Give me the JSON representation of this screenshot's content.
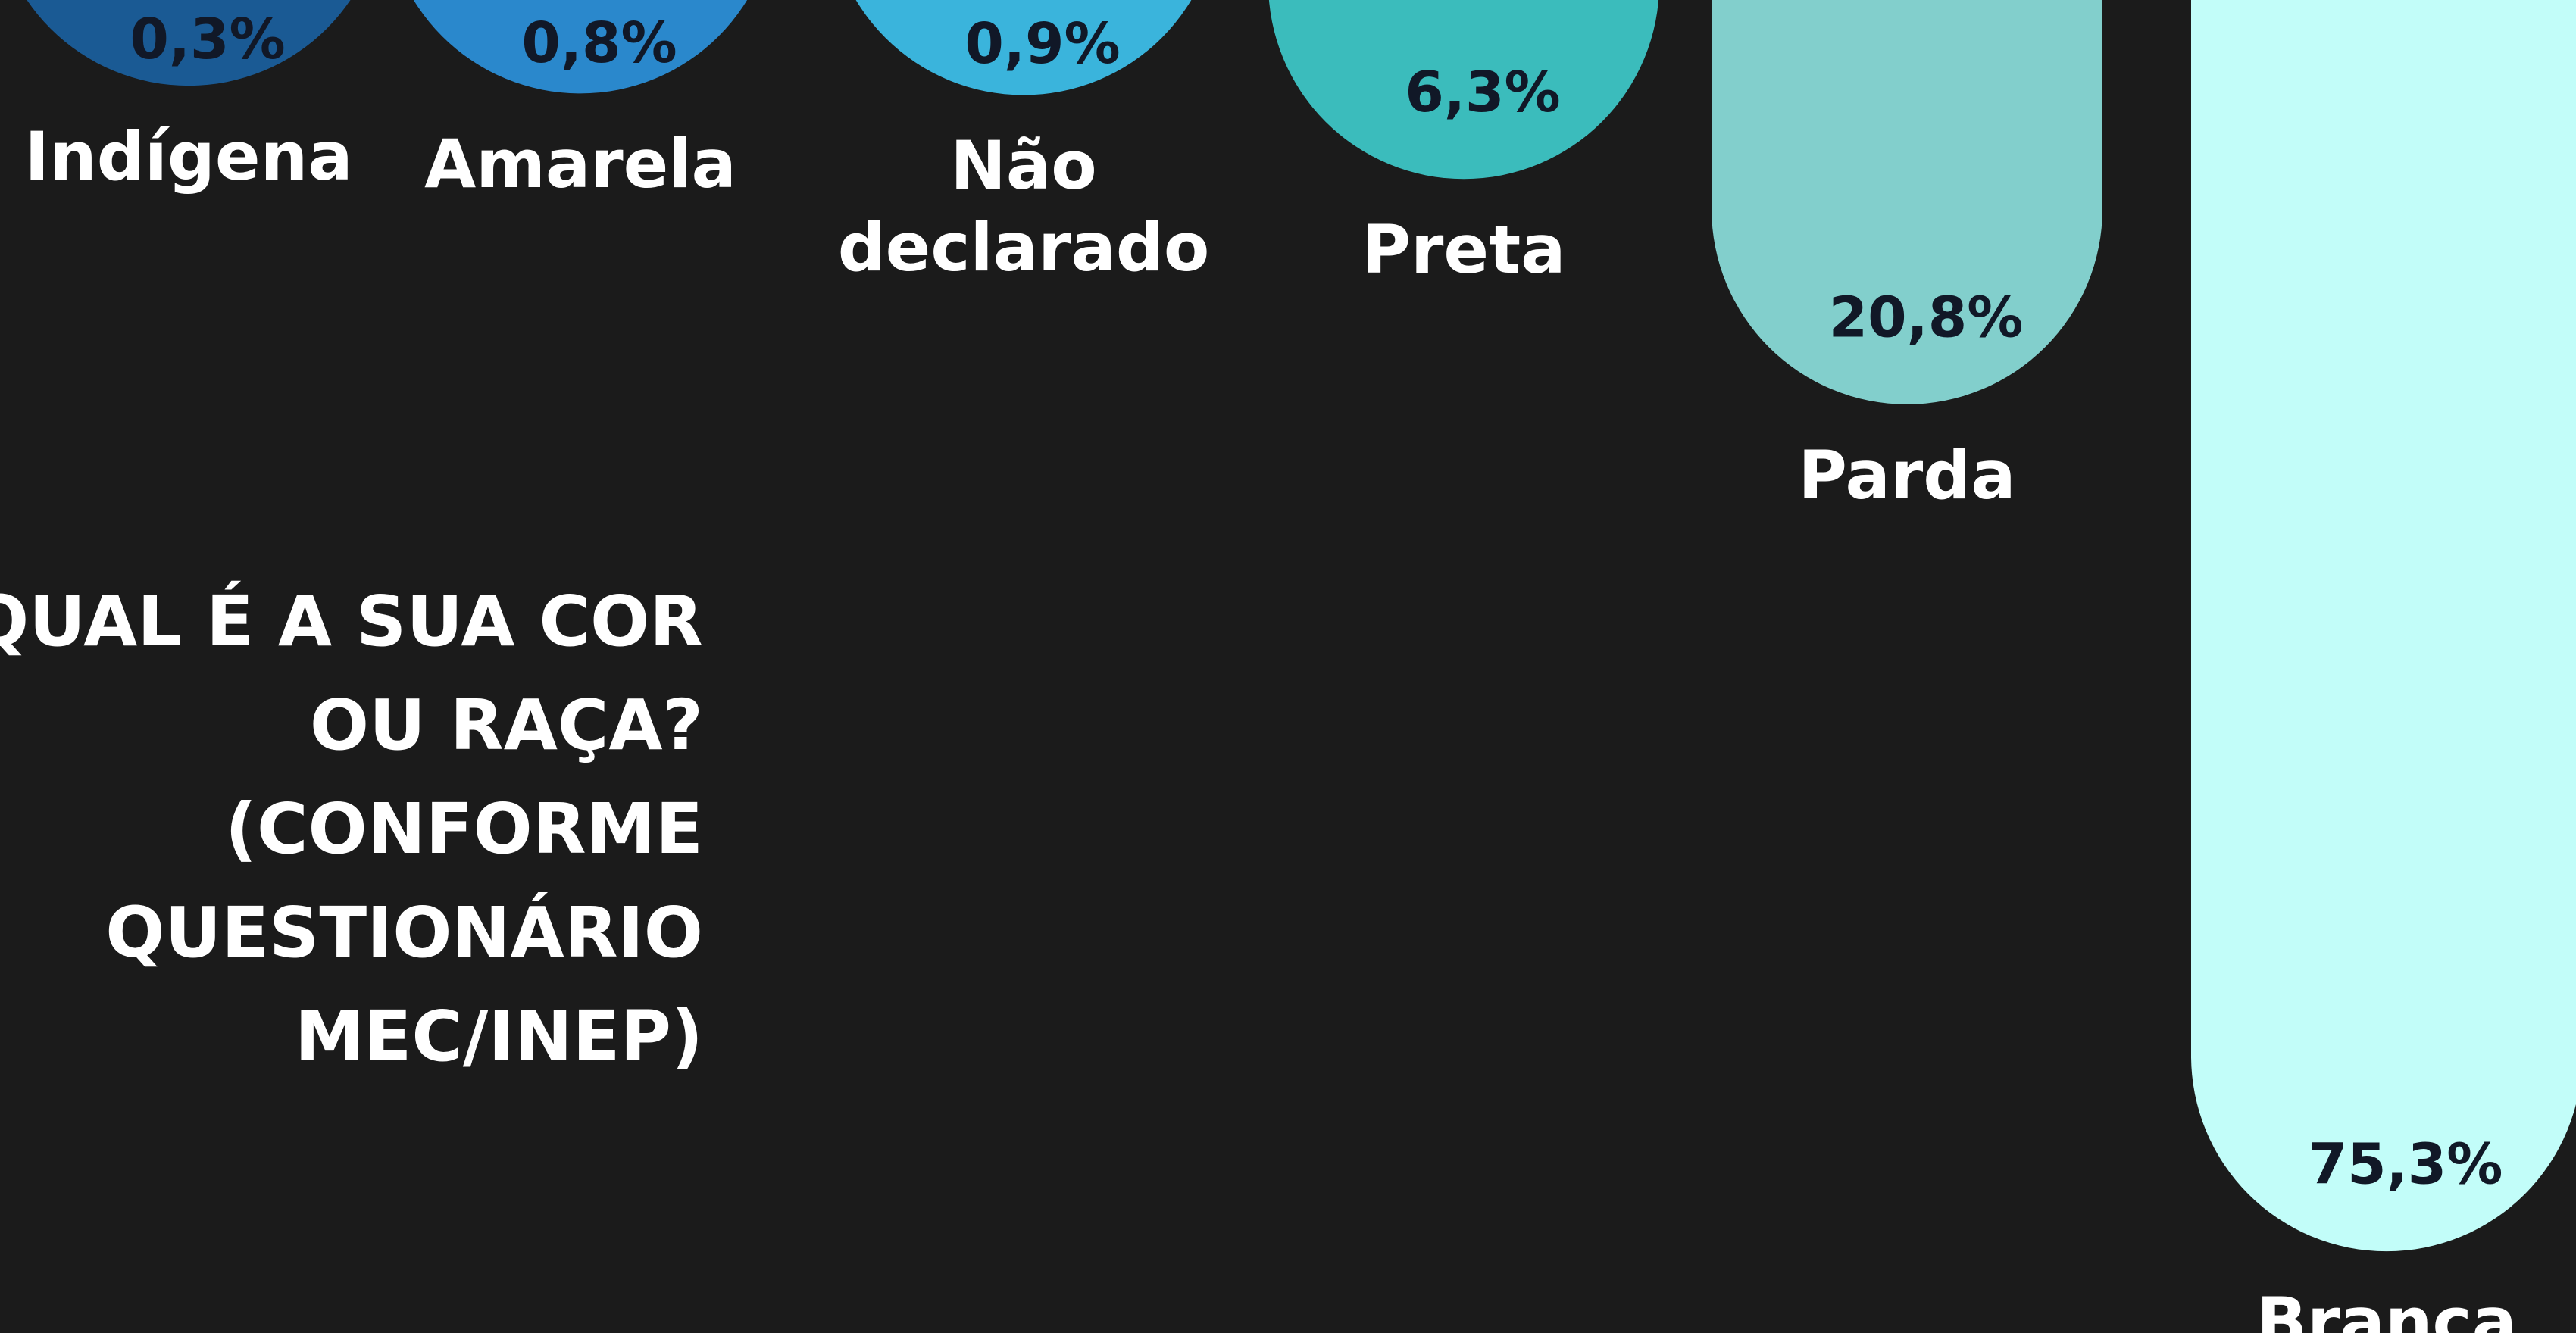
{
  "chart_data": {
    "type": "bar",
    "title": "QUAL É A SUA COR OU RAÇA? (CONFORME QUESTIONÁRIO MEC/INEP)",
    "categories": [
      "Indígena",
      "Amarela",
      "Não declarado",
      "Preta",
      "Parda",
      "Branca"
    ],
    "values": [
      0.3,
      0.8,
      0.9,
      6.3,
      20.8,
      75.3
    ],
    "value_labels": [
      "0,3%",
      "0,8%",
      "0,9%",
      "6,3%",
      "20,8%",
      "75,3%"
    ],
    "colors": [
      "#1a5a94",
      "#2a88cc",
      "#3ab4dc",
      "#3bbcbc",
      "#82cfcc",
      "#c2fdf9"
    ]
  }
}
